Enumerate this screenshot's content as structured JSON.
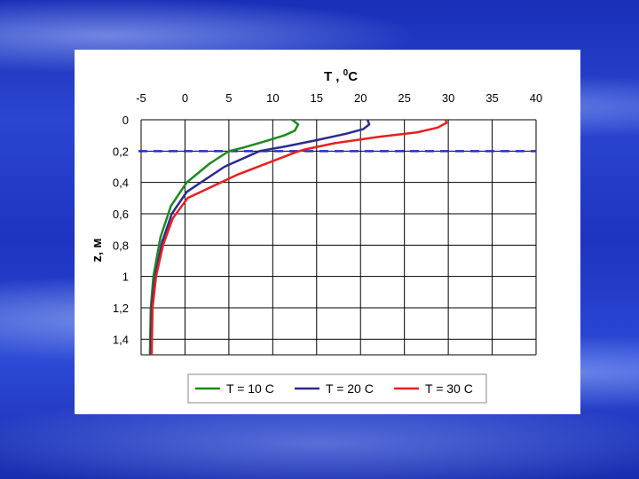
{
  "chart_data": {
    "type": "line",
    "xlabel_main": "T , ",
    "xlabel_sup": "0",
    "xlabel_unit": "C",
    "ylabel": "z, м",
    "xlim": [
      -5,
      40
    ],
    "ylim": [
      0,
      1.5
    ],
    "x_ticks": [
      "-5",
      "0",
      "5",
      "10",
      "15",
      "20",
      "25",
      "30",
      "35",
      "40"
    ],
    "y_ticks": [
      "0",
      "0,2",
      "0,4",
      "0,6",
      "0,8",
      "1",
      "1,2",
      "1,4"
    ],
    "y_tick_values": [
      0,
      0.2,
      0.4,
      0.6,
      0.8,
      1.0,
      1.2,
      1.4
    ],
    "reference_line": {
      "y": 0.2,
      "color": "#1f2ecf",
      "style": "dashed"
    },
    "series": [
      {
        "name": "T = 10 C",
        "color": "#1c8a1c",
        "points": [
          [
            12.2,
            0
          ],
          [
            12.9,
            0.03
          ],
          [
            12.5,
            0.07
          ],
          [
            11.3,
            0.1
          ],
          [
            9.0,
            0.14
          ],
          [
            6.5,
            0.18
          ],
          [
            5.0,
            0.2
          ],
          [
            2.8,
            0.28
          ],
          [
            0.2,
            0.4
          ],
          [
            -1.6,
            0.55
          ],
          [
            -2.8,
            0.75
          ],
          [
            -3.6,
            1.0
          ],
          [
            -3.9,
            1.2
          ],
          [
            -4.0,
            1.5
          ]
        ]
      },
      {
        "name": "T = 20 C",
        "color": "#2b2b8c",
        "points": [
          [
            20.8,
            0
          ],
          [
            21.0,
            0.03
          ],
          [
            20.3,
            0.06
          ],
          [
            18.3,
            0.09
          ],
          [
            15.0,
            0.13
          ],
          [
            11.5,
            0.17
          ],
          [
            8.5,
            0.2
          ],
          [
            4.5,
            0.3
          ],
          [
            0.2,
            0.46
          ],
          [
            -1.5,
            0.6
          ],
          [
            -2.6,
            0.78
          ],
          [
            -3.4,
            1.0
          ],
          [
            -3.8,
            1.2
          ],
          [
            -3.9,
            1.5
          ]
        ]
      },
      {
        "name": "T = 30 C",
        "color": "#e81f1f",
        "points": [
          [
            29.7,
            0
          ],
          [
            29.8,
            0.02
          ],
          [
            28.8,
            0.05
          ],
          [
            26.5,
            0.08
          ],
          [
            22.0,
            0.11
          ],
          [
            17.0,
            0.15
          ],
          [
            13.6,
            0.19
          ],
          [
            12.5,
            0.21
          ],
          [
            6.0,
            0.35
          ],
          [
            0.3,
            0.5
          ],
          [
            -1.4,
            0.63
          ],
          [
            -2.5,
            0.8
          ],
          [
            -3.3,
            1.0
          ],
          [
            -3.7,
            1.2
          ],
          [
            -3.8,
            1.5
          ]
        ]
      }
    ],
    "legend_position": "bottom"
  }
}
